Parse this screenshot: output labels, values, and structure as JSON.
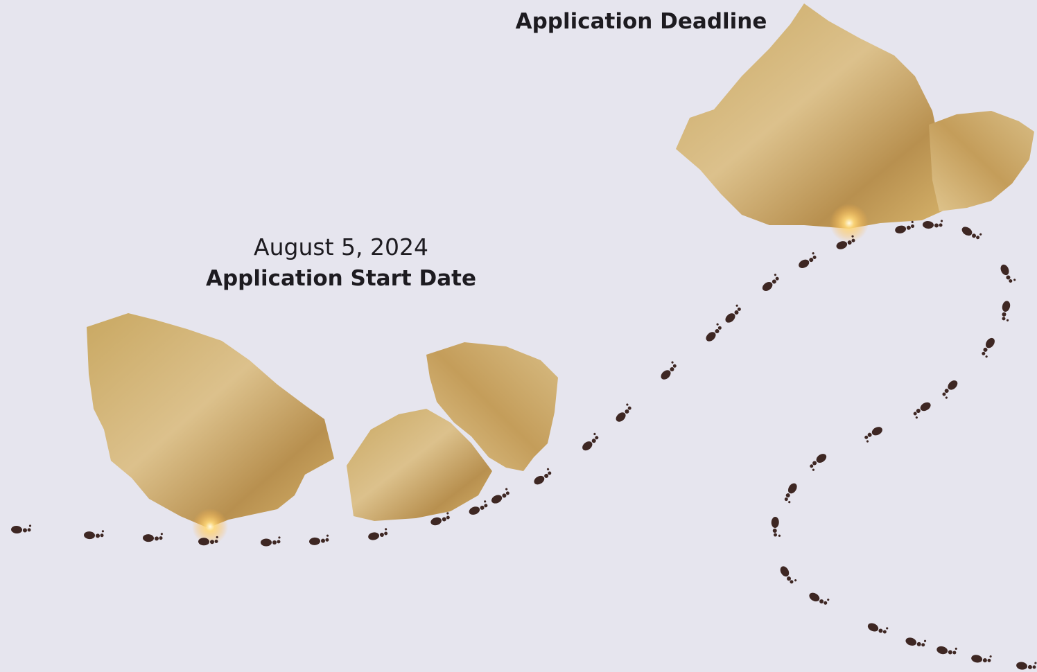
{
  "milestones": [
    {
      "date": "August 5, 2024",
      "label": "Application Start Date"
    },
    {
      "label": "Application Deadline"
    }
  ]
}
